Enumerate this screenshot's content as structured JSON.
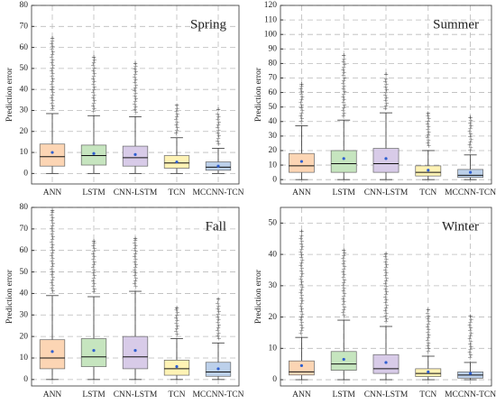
{
  "chart_data": [
    {
      "type": "box",
      "title": "Spring",
      "ylabel": "Prediction error",
      "categories": [
        "ANN",
        "LSTM",
        "CNN-LSTM",
        "TCN",
        "MCCNN-TCN"
      ],
      "colors": [
        "#fcd5b4",
        "#c6e5bf",
        "#d8cbe8",
        "#fff3b5",
        "#bcd0ea"
      ],
      "mean_color": "#2f5fd0",
      "flier_color": "#e8463c",
      "grid": true,
      "ylim": [
        -5,
        80
      ],
      "yticks": [
        0,
        10,
        20,
        30,
        40,
        50,
        60,
        70,
        80
      ],
      "boxes": [
        {
          "whislo": 0,
          "q1": 3.5,
          "med": 8,
          "q3": 14,
          "whishi": 28.5,
          "mean": 10,
          "fliermax": 64
        },
        {
          "whislo": 0,
          "q1": 4,
          "med": 8.5,
          "q3": 13.5,
          "whishi": 27.5,
          "mean": 9.5,
          "fliermax": 55
        },
        {
          "whislo": 0,
          "q1": 3.5,
          "med": 7.5,
          "q3": 13,
          "whishi": 27,
          "mean": 9,
          "fliermax": 52
        },
        {
          "whislo": 0,
          "q1": 2.5,
          "med": 5,
          "q3": 8.5,
          "whishi": 17,
          "mean": 5.5,
          "fliermax": 32
        },
        {
          "whislo": 0,
          "q1": 1.5,
          "med": 3,
          "q3": 5.5,
          "whishi": 12,
          "mean": 3.5,
          "fliermax": 30
        }
      ]
    },
    {
      "type": "box",
      "title": "Summer",
      "ylabel": "Prediction error",
      "categories": [
        "ANN",
        "LSTM",
        "CNN-LSTM",
        "TCN",
        "MCCNN-TCN"
      ],
      "colors": [
        "#fcd5b4",
        "#c6e5bf",
        "#d8cbe8",
        "#fff3b5",
        "#bcd0ea"
      ],
      "mean_color": "#2f5fd0",
      "flier_color": "#e8463c",
      "grid": true,
      "ylim": [
        -3,
        120
      ],
      "yticks": [
        0,
        10,
        20,
        30,
        40,
        50,
        60,
        70,
        80,
        90,
        100,
        110,
        120
      ],
      "boxes": [
        {
          "whislo": 0,
          "q1": 5,
          "med": 9.5,
          "q3": 18,
          "whishi": 37,
          "mean": 12.5,
          "fliermax": 65
        },
        {
          "whislo": 0,
          "q1": 5,
          "med": 11,
          "q3": 20,
          "whishi": 41,
          "mean": 14.5,
          "fliermax": 85
        },
        {
          "whislo": 0,
          "q1": 5,
          "med": 11,
          "q3": 21.5,
          "whishi": 46,
          "mean": 14.5,
          "fliermax": 72
        },
        {
          "whislo": 0,
          "q1": 2.5,
          "med": 5,
          "q3": 9.5,
          "whishi": 20,
          "mean": 6.5,
          "fliermax": 45
        },
        {
          "whislo": 0,
          "q1": 1.5,
          "med": 3,
          "q3": 7,
          "whishi": 17,
          "mean": 5,
          "fliermax": 42
        }
      ]
    },
    {
      "type": "box",
      "title": "Fall",
      "ylabel": "Prediction error",
      "categories": [
        "ANN",
        "LSTM",
        "CNN-LSTM",
        "TCN",
        "MCCNN-TCN"
      ],
      "colors": [
        "#fcd5b4",
        "#c6e5bf",
        "#d8cbe8",
        "#fff3b5",
        "#bcd0ea"
      ],
      "mean_color": "#2f5fd0",
      "flier_color": "#e8463c",
      "grid": true,
      "ylim": [
        -3,
        80
      ],
      "yticks": [
        0,
        10,
        20,
        30,
        40,
        50,
        60,
        70,
        80
      ],
      "boxes": [
        {
          "whislo": 0,
          "q1": 5,
          "med": 10,
          "q3": 18.5,
          "whishi": 39,
          "mean": 13,
          "fliermax": 78
        },
        {
          "whislo": 0,
          "q1": 6,
          "med": 10.5,
          "q3": 19,
          "whishi": 38.5,
          "mean": 13.5,
          "fliermax": 64
        },
        {
          "whislo": 0,
          "q1": 5,
          "med": 10.5,
          "q3": 20,
          "whishi": 41,
          "mean": 13.5,
          "fliermax": 65
        },
        {
          "whislo": 0,
          "q1": 2,
          "med": 5,
          "q3": 9,
          "whishi": 19,
          "mean": 6,
          "fliermax": 33
        },
        {
          "whislo": 0,
          "q1": 1.5,
          "med": 3.5,
          "q3": 8,
          "whishi": 17,
          "mean": 5,
          "fliermax": 37
        }
      ]
    },
    {
      "type": "box",
      "title": "Winter",
      "ylabel": "Prediction error",
      "categories": [
        "ANN",
        "LSTM",
        "CNN-LSTM",
        "TCN",
        "MCCNN-TCN"
      ],
      "colors": [
        "#fcd5b4",
        "#c6e5bf",
        "#d8cbe8",
        "#fff3b5",
        "#bcd0ea"
      ],
      "mean_color": "#2f5fd0",
      "flier_color": "#e8463c",
      "grid": true,
      "ylim": [
        -2,
        55
      ],
      "yticks": [
        0,
        10,
        20,
        30,
        40,
        50
      ],
      "boxes": [
        {
          "whislo": 0,
          "q1": 1.5,
          "med": 2.5,
          "q3": 6,
          "whishi": 13.5,
          "mean": 4.5,
          "fliermax": 47
        },
        {
          "whislo": 0,
          "q1": 3,
          "med": 5,
          "q3": 9,
          "whishi": 19,
          "mean": 6.5,
          "fliermax": 41
        },
        {
          "whislo": 0,
          "q1": 2,
          "med": 3.5,
          "q3": 8,
          "whishi": 17,
          "mean": 5.5,
          "fliermax": 40
        },
        {
          "whislo": 0,
          "q1": 1,
          "med": 2,
          "q3": 3.5,
          "whishi": 7.5,
          "mean": 2.5,
          "fliermax": 22
        },
        {
          "whislo": 0,
          "q1": 0.5,
          "med": 1.5,
          "q3": 2.5,
          "whishi": 5.5,
          "mean": 2,
          "fliermax": 20
        }
      ]
    }
  ]
}
